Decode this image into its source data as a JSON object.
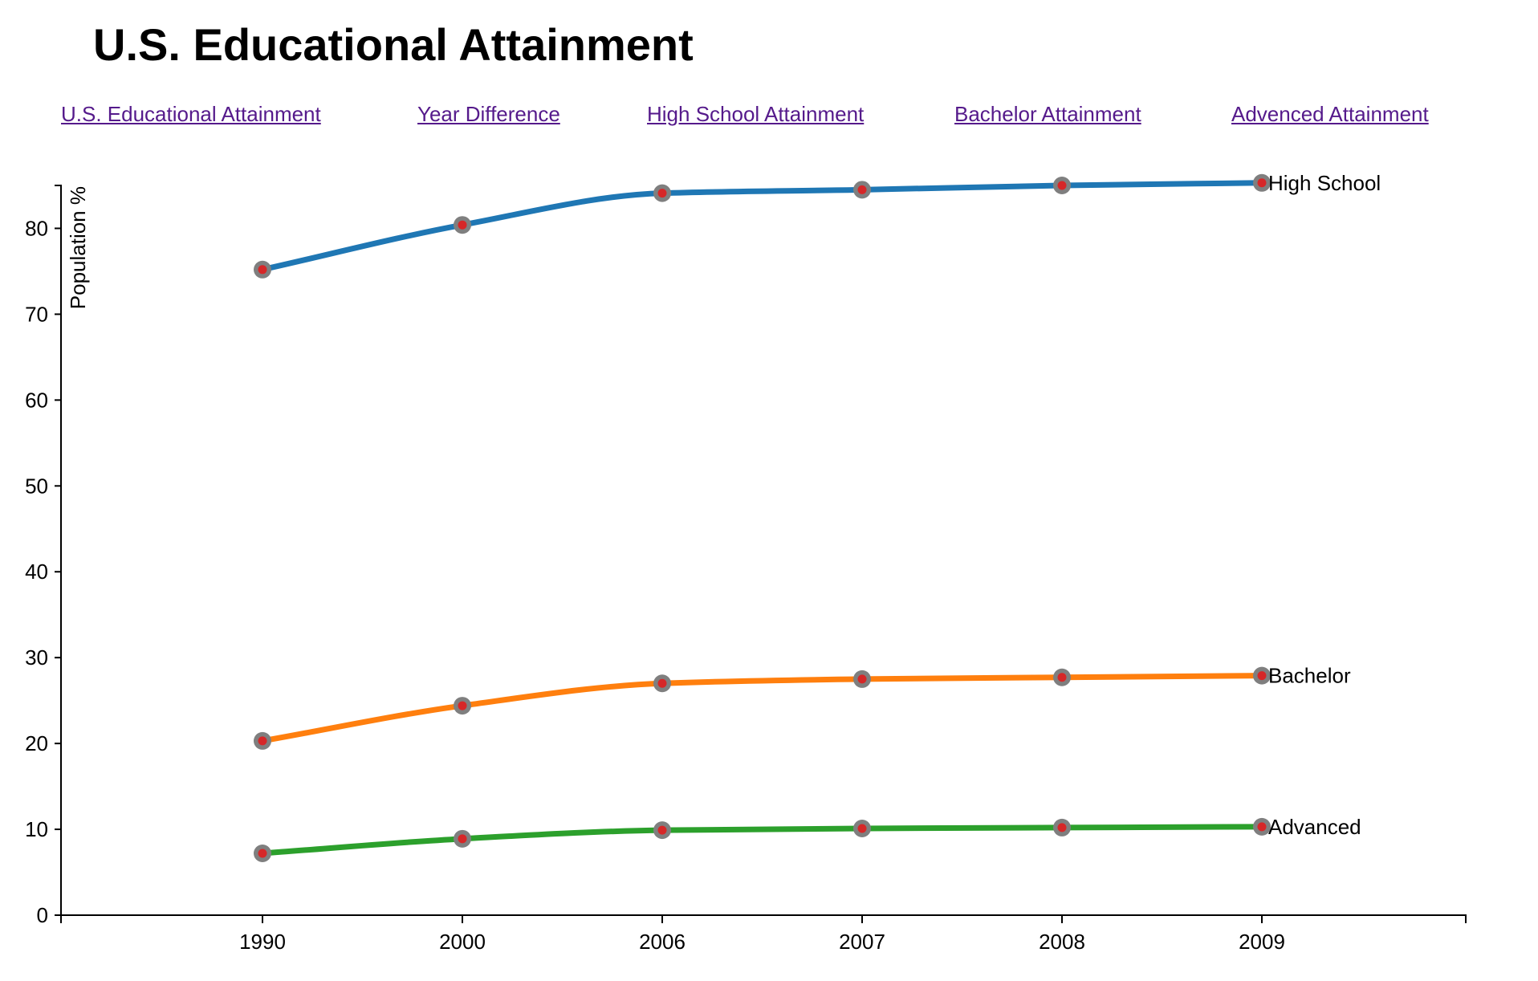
{
  "title": "U.S. Educational Attainment",
  "nav": {
    "links": [
      "U.S. Educational Attainment",
      "Year Difference",
      "High School Attainment",
      "Bachelor Attainment",
      "Advenced Attainment"
    ]
  },
  "chart_data": {
    "type": "line",
    "title": "",
    "xlabel": "",
    "ylabel": "Population %",
    "categories": [
      "1990",
      "2000",
      "2006",
      "2007",
      "2008",
      "2009"
    ],
    "ylim": [
      0,
      85
    ],
    "yticks": [
      0,
      10,
      20,
      30,
      40,
      50,
      60,
      70,
      80
    ],
    "grid": false,
    "legend": "none",
    "series": [
      {
        "name": "High School",
        "color": "#1f77b4",
        "values": [
          75.2,
          80.4,
          84.1,
          84.5,
          85.0,
          85.3
        ]
      },
      {
        "name": "Bachelor",
        "color": "#ff7f0e",
        "values": [
          20.3,
          24.4,
          27.0,
          27.5,
          27.7,
          27.9
        ]
      },
      {
        "name": "Advanced",
        "color": "#2ca02c",
        "values": [
          7.2,
          8.9,
          9.9,
          10.1,
          10.2,
          10.3
        ]
      }
    ],
    "marker": {
      "outer_color": "#7f7f7f",
      "inner_color": "#d62728"
    }
  }
}
